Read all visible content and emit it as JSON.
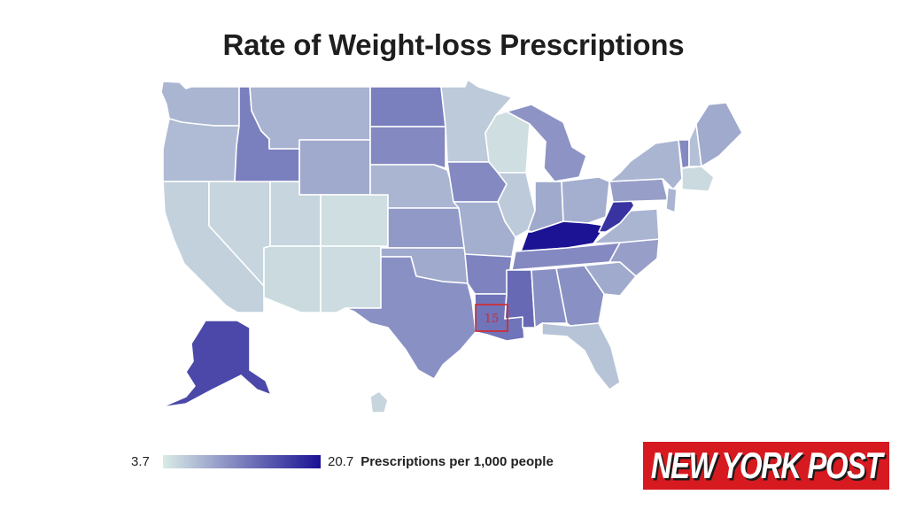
{
  "title": "Rate of Weight-loss Prescriptions",
  "legend": {
    "min_label": "3.7",
    "max_label": "20.7",
    "unit_label": "Prescriptions per 1,000 people",
    "min_value": 3.7,
    "max_value": 20.7,
    "color_low": "#d9ebe6",
    "color_high": "#1b1294"
  },
  "annotation": {
    "label": "15",
    "state": "Louisiana",
    "color": "#d62728"
  },
  "logo": {
    "text": "NEW YORK POST",
    "color": "#d71920"
  },
  "colors": {
    "background": "#ffffff",
    "border": "#ffffff"
  },
  "states": [
    {
      "state": "Washington",
      "level": 0.25
    },
    {
      "state": "Oregon",
      "level": 0.22
    },
    {
      "state": "California",
      "level": 0.12
    },
    {
      "state": "Nevada",
      "level": 0.1
    },
    {
      "state": "Idaho",
      "level": 0.5
    },
    {
      "state": "Montana",
      "level": 0.26
    },
    {
      "state": "Wyoming",
      "level": 0.3
    },
    {
      "state": "Utah",
      "level": 0.1
    },
    {
      "state": "Colorado",
      "level": 0.06
    },
    {
      "state": "Arizona",
      "level": 0.08
    },
    {
      "state": "New Mexico",
      "level": 0.07
    },
    {
      "state": "North Dakota",
      "level": 0.5
    },
    {
      "state": "South Dakota",
      "level": 0.45
    },
    {
      "state": "Nebraska",
      "level": 0.25
    },
    {
      "state": "Kansas",
      "level": 0.38
    },
    {
      "state": "Oklahoma",
      "level": 0.3
    },
    {
      "state": "Texas",
      "level": 0.42
    },
    {
      "state": "Minnesota",
      "level": 0.15
    },
    {
      "state": "Iowa",
      "level": 0.45
    },
    {
      "state": "Missouri",
      "level": 0.28
    },
    {
      "state": "Arkansas",
      "level": 0.48
    },
    {
      "state": "Louisiana",
      "level": 0.55
    },
    {
      "state": "Wisconsin",
      "level": 0.06
    },
    {
      "state": "Illinois",
      "level": 0.15
    },
    {
      "state": "Michigan",
      "level": 0.4
    },
    {
      "state": "Indiana",
      "level": 0.3
    },
    {
      "state": "Ohio",
      "level": 0.28
    },
    {
      "state": "Kentucky",
      "level": 1.0
    },
    {
      "state": "Tennessee",
      "level": 0.45
    },
    {
      "state": "Mississippi",
      "level": 0.6
    },
    {
      "state": "Alabama",
      "level": 0.42
    },
    {
      "state": "Georgia",
      "level": 0.42
    },
    {
      "state": "Florida",
      "level": 0.18
    },
    {
      "state": "South Carolina",
      "level": 0.3
    },
    {
      "state": "North Carolina",
      "level": 0.35
    },
    {
      "state": "Virginia",
      "level": 0.25
    },
    {
      "state": "West Virginia",
      "level": 0.85
    },
    {
      "state": "Pennsylvania",
      "level": 0.35
    },
    {
      "state": "New York",
      "level": 0.25
    },
    {
      "state": "Vermont",
      "level": 0.45
    },
    {
      "state": "New Hampshire",
      "level": 0.2
    },
    {
      "state": "Maine",
      "level": 0.3
    },
    {
      "state": "Massachusetts",
      "level": 0.08
    },
    {
      "state": "New Jersey",
      "level": 0.25
    },
    {
      "state": "Alaska",
      "level": 0.75
    },
    {
      "state": "Hawaii",
      "level": 0.1
    }
  ]
}
